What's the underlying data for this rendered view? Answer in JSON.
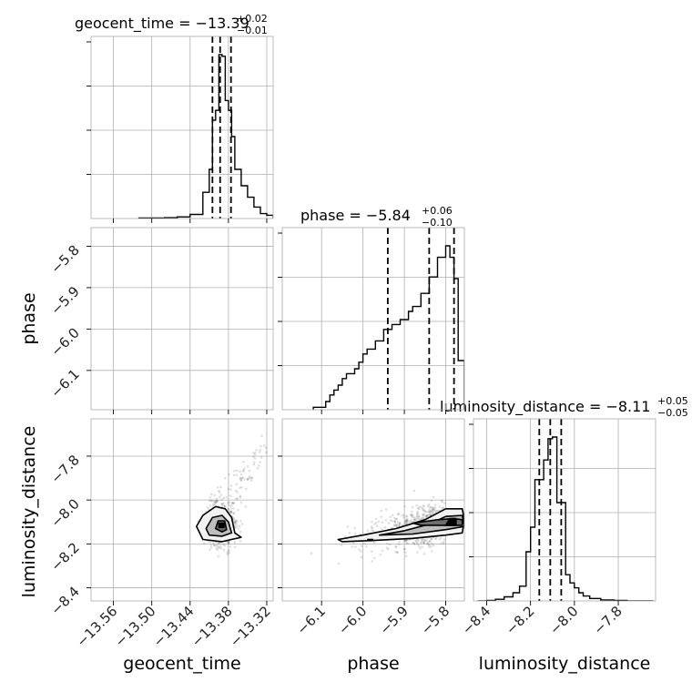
{
  "chart_data": {
    "type": "corner",
    "parameters": [
      "geocent_time",
      "phase",
      "luminosity_distance"
    ],
    "axis_labels": {
      "x": [
        "geocent_time",
        "phase",
        "luminosity_distance"
      ],
      "y": [
        "",
        "phase",
        "luminosity_distance"
      ]
    },
    "ticks": {
      "geocent_time": [
        "−13.56",
        "−13.50",
        "−13.44",
        "−13.38",
        "−13.32"
      ],
      "phase": [
        "−6.1",
        "−6.0",
        "−5.9",
        "−5.8"
      ],
      "luminosity_distance": [
        "−8.4",
        "−8.2",
        "−8.0",
        "−7.8"
      ]
    },
    "ranges": {
      "geocent_time": [
        -13.595,
        -13.31
      ],
      "phase": [
        -6.195,
        -5.755
      ],
      "luminosity_distance": [
        -8.46,
        -7.63
      ]
    },
    "titles": [
      {
        "text": "geocent_time = −13.39",
        "sup": "+0.02",
        "sub": "−0.01"
      },
      {
        "text": "phase = −5.84",
        "sup": "+0.06",
        "sub": "−0.10"
      },
      {
        "text": "luminosity_distance = −8.11",
        "sup": "+0.05",
        "sub": "−0.05"
      }
    ],
    "quantiles": {
      "geocent_time": [
        -13.405,
        -13.393,
        -13.376
      ],
      "phase": [
        -5.94,
        -5.84,
        -5.78
      ],
      "luminosity_distance": [
        -8.16,
        -8.11,
        -8.06
      ]
    },
    "histograms": {
      "geocent_time": {
        "edges": [
          -13.52,
          -13.5,
          -13.48,
          -13.46,
          -13.44,
          -13.42,
          -13.41,
          -13.405,
          -13.4,
          -13.395,
          -13.39,
          -13.385,
          -13.38,
          -13.375,
          -13.37,
          -13.36,
          -13.35,
          -13.34,
          -13.33,
          -13.32,
          -13.31
        ],
        "counts": [
          0.003,
          0.003,
          0.005,
          0.01,
          0.025,
          0.16,
          0.3,
          0.6,
          0.66,
          1.0,
          0.99,
          0.72,
          0.66,
          0.5,
          0.3,
          0.2,
          0.13,
          0.07,
          0.03,
          0.02
        ]
      },
      "phase": {
        "edges": [
          -6.12,
          -6.1,
          -6.09,
          -6.08,
          -6.07,
          -6.06,
          -6.05,
          -6.04,
          -6.03,
          -6.02,
          -6.01,
          -6.0,
          -5.99,
          -5.98,
          -5.97,
          -5.96,
          -5.95,
          -5.94,
          -5.93,
          -5.92,
          -5.91,
          -5.9,
          -5.89,
          -5.88,
          -5.87,
          -5.86,
          -5.85,
          -5.84,
          -5.83,
          -5.82,
          -5.81,
          -5.8,
          -5.79,
          -5.78,
          -5.77,
          -5.755
        ],
        "counts": [
          0.015,
          0.015,
          0.05,
          0.09,
          0.12,
          0.15,
          0.19,
          0.22,
          0.22,
          0.25,
          0.29,
          0.34,
          0.37,
          0.37,
          0.42,
          0.42,
          0.49,
          0.49,
          0.52,
          0.52,
          0.55,
          0.55,
          0.6,
          0.63,
          0.63,
          0.71,
          0.71,
          0.81,
          0.81,
          0.93,
          0.93,
          1.0,
          0.93,
          0.8,
          0.3
        ]
      },
      "luminosity_distance": {
        "edges": [
          -8.44,
          -8.4,
          -8.36,
          -8.32,
          -8.28,
          -8.25,
          -8.22,
          -8.2,
          -8.18,
          -8.16,
          -8.14,
          -8.12,
          -8.1,
          -8.08,
          -8.06,
          -8.04,
          -8.02,
          -8.0,
          -7.98,
          -7.96,
          -7.93,
          -7.88,
          -7.82,
          -7.76,
          -7.7,
          -7.64
        ],
        "counts": [
          0.0,
          0.003,
          0.01,
          0.025,
          0.05,
          0.09,
          0.3,
          0.45,
          0.74,
          0.74,
          0.86,
          0.99,
          1.0,
          0.6,
          0.6,
          0.16,
          0.11,
          0.08,
          0.05,
          0.03,
          0.015,
          0.006,
          0.003,
          0.0,
          0.0
        ]
      }
    },
    "grid": true
  }
}
